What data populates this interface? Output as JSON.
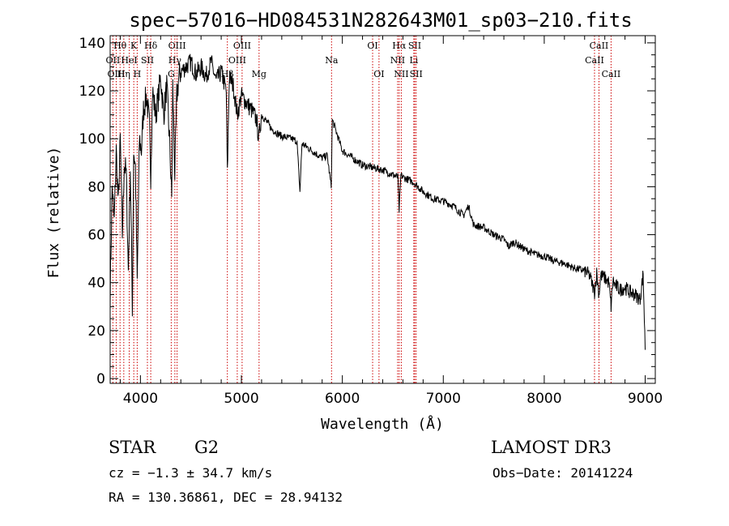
{
  "chart_data": {
    "type": "line",
    "title": "spec−57016−HD084531N282643M01_sp03−210.fits",
    "xlabel": "Wavelength (Å)",
    "ylabel": "Flux (relative)",
    "xlim": [
      3700,
      9100
    ],
    "ylim": [
      -2,
      143
    ],
    "xticks": [
      4000,
      5000,
      6000,
      7000,
      8000,
      9000
    ],
    "yticks": [
      0,
      20,
      40,
      60,
      80,
      100,
      120,
      140
    ],
    "grid": false,
    "spectrum": {
      "x": [
        3700,
        3720,
        3740,
        3760,
        3780,
        3800,
        3820,
        3840,
        3860,
        3880,
        3900,
        3920,
        3933,
        3950,
        3968,
        3990,
        4010,
        4030,
        4060,
        4090,
        4102,
        4120,
        4150,
        4180,
        4200,
        4230,
        4260,
        4290,
        4310,
        4320,
        4340,
        4360,
        4380,
        4400,
        4450,
        4500,
        4550,
        4600,
        4650,
        4700,
        4750,
        4800,
        4850,
        4861,
        4880,
        4920,
        4960,
        5000,
        5050,
        5100,
        5150,
        5172,
        5200,
        5270,
        5300,
        5400,
        5500,
        5550,
        5580,
        5600,
        5700,
        5800,
        5850,
        5890,
        5900,
        6000,
        6100,
        6200,
        6300,
        6400,
        6450,
        6500,
        6550,
        6563,
        6580,
        6600,
        6700,
        6800,
        6900,
        7000,
        7100,
        7200,
        7250,
        7300,
        7400,
        7500,
        7600,
        7650,
        7700,
        7800,
        7900,
        8000,
        8100,
        8200,
        8300,
        8400,
        8450,
        8498,
        8520,
        8542,
        8560,
        8600,
        8640,
        8662,
        8680,
        8700,
        8750,
        8800,
        8850,
        8900,
        8950,
        8980,
        9000
      ],
      "y": [
        35,
        80,
        65,
        95,
        72,
        100,
        60,
        90,
        85,
        45,
        88,
        30,
        95,
        88,
        40,
        100,
        95,
        112,
        118,
        105,
        85,
        120,
        110,
        118,
        126,
        110,
        122,
        98,
        75,
        122,
        85,
        118,
        125,
        128,
        130,
        132,
        127,
        130,
        126,
        132,
        124,
        128,
        120,
        85,
        126,
        122,
        110,
        118,
        115,
        112,
        108,
        100,
        110,
        106,
        104,
        101,
        100,
        99,
        78,
        98,
        95,
        92,
        93,
        80,
        108,
        95,
        92,
        89,
        88,
        87,
        86,
        85,
        84,
        70,
        85,
        84,
        82,
        78,
        75,
        74,
        72,
        68,
        72,
        64,
        63,
        60,
        58,
        55,
        57,
        54,
        52,
        51,
        49,
        48,
        46,
        45,
        43,
        36,
        44,
        35,
        43,
        42,
        40,
        30,
        41,
        39,
        37,
        38,
        36,
        35,
        33,
        44,
        12
      ]
    },
    "lines": [
      {
        "label": "Hθ",
        "wave": 3798,
        "row": 0
      },
      {
        "label": "OII",
        "wave": 3727,
        "row": 1
      },
      {
        "label": "OIII",
        "wave": 3760,
        "row": 2
      },
      {
        "label": "HeI",
        "wave": 3889,
        "row": 1
      },
      {
        "label": "Hη",
        "wave": 3835,
        "row": 2
      },
      {
        "label": "K",
        "wave": 3934,
        "row": 0
      },
      {
        "label": "SII",
        "wave": 4069,
        "row": 1
      },
      {
        "label": "H",
        "wave": 3968,
        "row": 2
      },
      {
        "label": "Hδ",
        "wave": 4102,
        "row": 0
      },
      {
        "label": "OIII",
        "wave": 4363,
        "row": 0
      },
      {
        "label": "Hγ",
        "wave": 4341,
        "row": 1
      },
      {
        "label": "G",
        "wave": 4305,
        "row": 2
      },
      {
        "label": "Hβ",
        "wave": 4861,
        "row": 2
      },
      {
        "label": "OIII",
        "wave": 4959,
        "row": 1
      },
      {
        "label": "OIII",
        "wave": 5007,
        "row": 0
      },
      {
        "label": "Mg",
        "wave": 5175,
        "row": 2
      },
      {
        "label": "Na",
        "wave": 5893,
        "row": 1
      },
      {
        "label": "OI",
        "wave": 6300,
        "row": 0
      },
      {
        "label": "OI",
        "wave": 6363,
        "row": 2
      },
      {
        "label": "Hα",
        "wave": 6563,
        "row": 0
      },
      {
        "label": "NII",
        "wave": 6548,
        "row": 1
      },
      {
        "label": "NII",
        "wave": 6584,
        "row": 2
      },
      {
        "label": "SII",
        "wave": 6717,
        "row": 0
      },
      {
        "label": "Li",
        "wave": 6708,
        "row": 1
      },
      {
        "label": "SII",
        "wave": 6731,
        "row": 2
      },
      {
        "label": "CaII",
        "wave": 8542,
        "row": 0
      },
      {
        "label": "CaII",
        "wave": 8498,
        "row": 1
      },
      {
        "label": "CaII",
        "wave": 8662,
        "row": 2
      }
    ],
    "line_color": "#cc0000"
  },
  "info": {
    "object_type": "STAR",
    "subclass": "G2",
    "survey": "LAMOST DR3",
    "cz": "cz = −1.3 ± 34.7 km/s",
    "obs_date": "Obs−Date: 20141224",
    "coords": "RA = 130.36861, DEC =  28.94132"
  }
}
